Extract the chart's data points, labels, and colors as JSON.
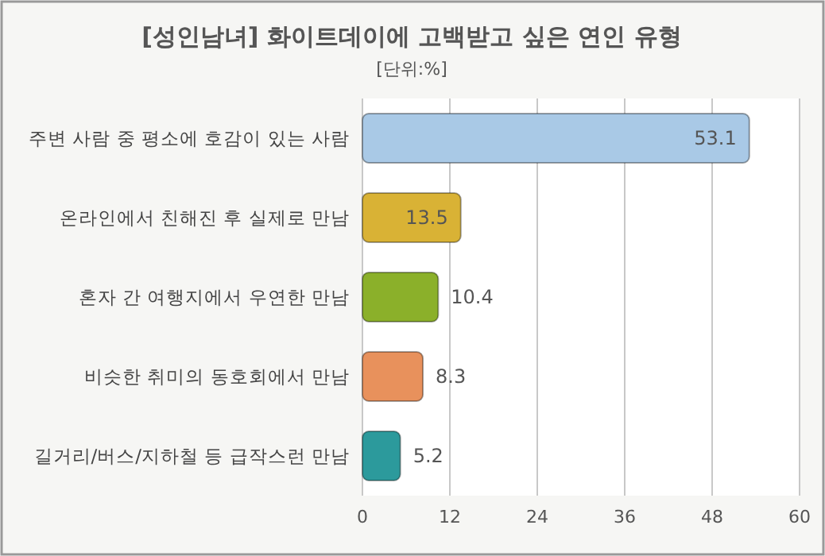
{
  "chart_data": {
    "type": "bar",
    "orientation": "horizontal",
    "title": "[성인남녀] 화이트데이에 고백받고 싶은 연인 유형",
    "subtitle": "[단위:%]",
    "categories": [
      "주변 사람 중 평소에 호감이 있는 사람",
      "온라인에서 친해진 후 실제로 만남",
      "혼자 간 여행지에서 우연한 만남",
      "비슷한 취미의 동호회에서 만남",
      "길거리/버스/지하철 등 급작스런 만남"
    ],
    "values": [
      53.1,
      13.5,
      10.4,
      8.3,
      5.2
    ],
    "colors": [
      "#a9c9e6",
      "#d9b235",
      "#8bb02a",
      "#e8915c",
      "#2c9a9c"
    ],
    "xlim": [
      0,
      60
    ],
    "xticks": [
      0,
      12,
      24,
      36,
      48,
      60
    ],
    "grid": "x",
    "data_labels": true
  }
}
